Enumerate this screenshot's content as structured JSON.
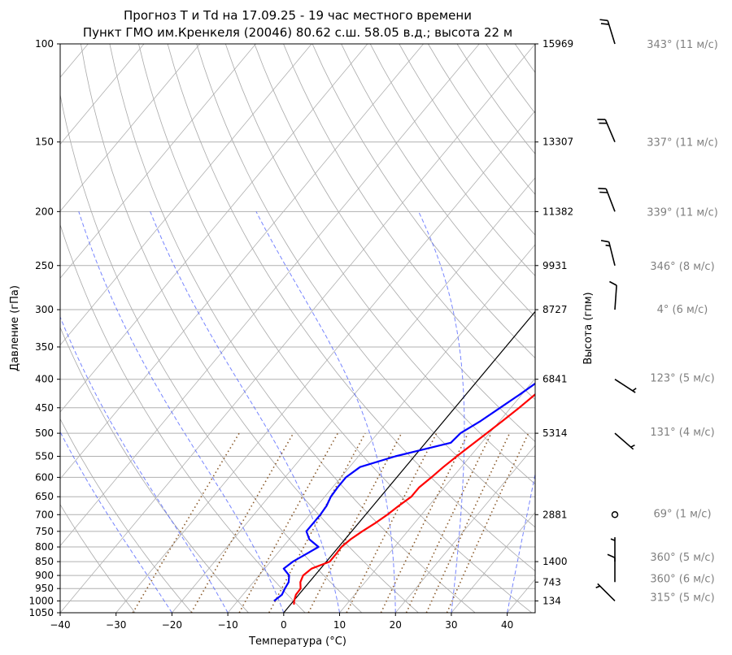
{
  "chart_data": {
    "type": "line",
    "title": "Прогноз T и Td на 17.09.25 - 19 час местного времени",
    "subtitle": "Пункт ГМО им.Кренкеля (20046) 80.62 с.ш. 58.05 в.д.; высота 22 м",
    "xlabel": "Температура (°C)",
    "ylabel": "Давление (гПа)",
    "y2label": "Высота (гпм)",
    "xlim": [
      -40,
      45
    ],
    "ylim": [
      1050,
      100
    ],
    "yscale": "log",
    "x_ticks": [
      "−40",
      "−30",
      "−20",
      "−10",
      "0",
      "10",
      "20",
      "30",
      "40"
    ],
    "y_ticks": [
      "100",
      "150",
      "200",
      "250",
      "300",
      "350",
      "400",
      "450",
      "500",
      "550",
      "600",
      "650",
      "700",
      "750",
      "800",
      "850",
      "900",
      "950",
      "1000",
      "1050"
    ],
    "height_ticks": [
      {
        "p": 100,
        "label": "15969"
      },
      {
        "p": 150,
        "label": "13307"
      },
      {
        "p": 200,
        "label": "11382"
      },
      {
        "p": 250,
        "label": "9931"
      },
      {
        "p": 300,
        "label": "8727"
      },
      {
        "p": 400,
        "label": "6841"
      },
      {
        "p": 500,
        "label": "5314"
      },
      {
        "p": 700,
        "label": "2881"
      },
      {
        "p": 850,
        "label": "1400"
      },
      {
        "p": 925,
        "label": "743"
      },
      {
        "p": 1000,
        "label": "134"
      }
    ],
    "grid": true,
    "series": [
      {
        "key": "temperature",
        "color": "#ff0000",
        "points": [
          [
            1015,
            0.6
          ],
          [
            1000,
            0.1
          ],
          [
            975,
            -0.5
          ],
          [
            950,
            -0.6
          ],
          [
            925,
            -1.6
          ],
          [
            900,
            -2.1
          ],
          [
            875,
            -1.6
          ],
          [
            850,
            0.6
          ],
          [
            825,
            0.6
          ],
          [
            800,
            0.5
          ],
          [
            775,
            1.0
          ],
          [
            750,
            1.9
          ],
          [
            725,
            3.0
          ],
          [
            700,
            3.9
          ],
          [
            675,
            4.6
          ],
          [
            650,
            5.5
          ],
          [
            625,
            5.5
          ],
          [
            600,
            6.2
          ],
          [
            575,
            6.8
          ],
          [
            550,
            7.6
          ],
          [
            525,
            8.5
          ],
          [
            500,
            9.5
          ],
          [
            475,
            10.5
          ],
          [
            450,
            11.5
          ],
          [
            425,
            12.4
          ],
          [
            400,
            13.8
          ],
          [
            375,
            15.2
          ],
          [
            350,
            16.9
          ],
          [
            325,
            19.6
          ],
          [
            300,
            22.9
          ],
          [
            290,
            24.5
          ],
          [
            275,
            27.4
          ],
          [
            250,
            30.7
          ],
          [
            225,
            33.8
          ],
          [
            200,
            36.0
          ],
          [
            175,
            37.8
          ],
          [
            150,
            41.6
          ],
          [
            125,
            46.5
          ],
          [
            115,
            48.7
          ]
        ]
      },
      {
        "key": "dewpoint",
        "color": "#0000ff",
        "points": [
          [
            1000,
            -3.5
          ],
          [
            975,
            -3.0
          ],
          [
            950,
            -3.4
          ],
          [
            925,
            -3.7
          ],
          [
            900,
            -4.6
          ],
          [
            875,
            -6.6
          ],
          [
            850,
            -6.0
          ],
          [
            825,
            -4.8
          ],
          [
            800,
            -3.6
          ],
          [
            775,
            -6.4
          ],
          [
            750,
            -8.1
          ],
          [
            725,
            -8.1
          ],
          [
            700,
            -8.1
          ],
          [
            675,
            -8.3
          ],
          [
            650,
            -8.9
          ],
          [
            625,
            -9.1
          ],
          [
            600,
            -9.1
          ],
          [
            575,
            -8.1
          ],
          [
            550,
            -3.4
          ],
          [
            520,
            4.5
          ],
          [
            500,
            4.8
          ],
          [
            475,
            6.6
          ],
          [
            450,
            8.1
          ],
          [
            425,
            9.7
          ],
          [
            400,
            11.2
          ],
          [
            375,
            12.7
          ],
          [
            350,
            15.0
          ],
          [
            325,
            17.4
          ],
          [
            300,
            19.3
          ],
          [
            275,
            21.5
          ],
          [
            262,
            23.0
          ],
          [
            250,
            26.6
          ],
          [
            225,
            29.2
          ],
          [
            200,
            30.0
          ],
          [
            175,
            31.1
          ],
          [
            150,
            32.0
          ],
          [
            125,
            33.9
          ],
          [
            110,
            35.0
          ],
          [
            100,
            37.6
          ]
        ]
      }
    ],
    "wind_barbs": [
      {
        "p": 100,
        "label": "343° (11 м/с)"
      },
      {
        "p": 150,
        "label": "337° (11 м/с)"
      },
      {
        "p": 200,
        "label": "339° (11 м/с)"
      },
      {
        "p": 250,
        "label": "346° (8 м/с)"
      },
      {
        "p": 300,
        "label": "4° (6 м/с)"
      },
      {
        "p": 400,
        "label": "123° (5 м/с)"
      },
      {
        "p": 500,
        "label": "131° (4 м/с)"
      },
      {
        "p": 700,
        "label": "69° (1 м/с)"
      },
      {
        "p": 850,
        "label": "360° (5 м/с)"
      },
      {
        "p": 925,
        "label": "360° (6 м/с)"
      },
      {
        "p": 1000,
        "label": "315° (5 м/с)"
      }
    ]
  }
}
